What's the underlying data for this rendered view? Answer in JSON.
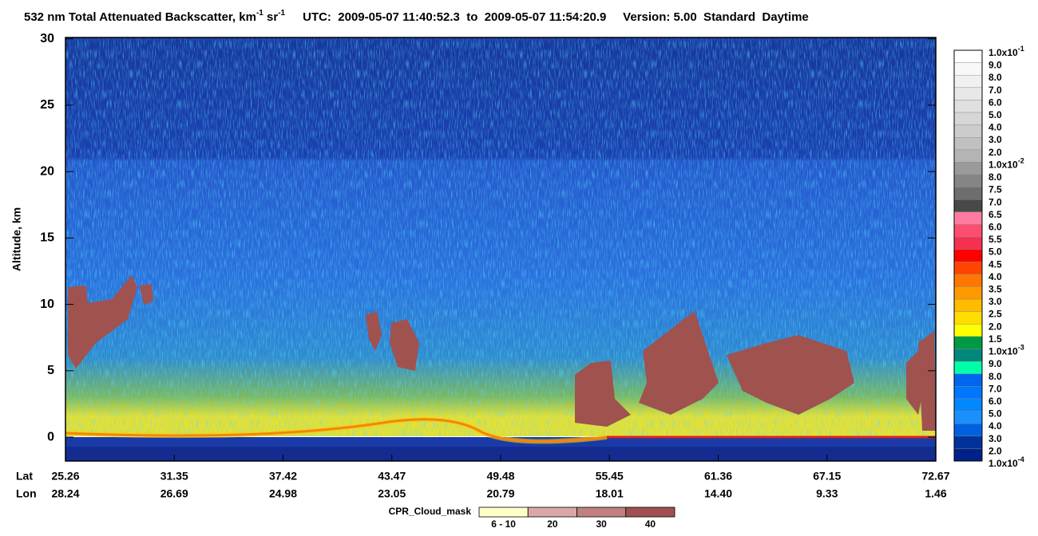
{
  "title": {
    "prefix": "532 nm Total Attenuated Backscatter, km",
    "exp1": "-1",
    "mid": " sr",
    "exp2": "-1",
    "rest": "UTC:  2009-05-07 11:40:52.3  to  2009-05-07 11:54:20.9     Version: 5.00  Standard  Daytime"
  },
  "y_axis": {
    "label": "Altitude, km",
    "ylim": [
      -1.8,
      30.1
    ],
    "yticks": [
      0,
      5,
      10,
      15,
      20,
      25,
      30
    ]
  },
  "x_axis": {
    "lat_label": "Lat",
    "lon_label": "Lon",
    "lat": [
      "25.26",
      "31.35",
      "37.42",
      "43.47",
      "49.48",
      "55.45",
      "61.36",
      "67.15",
      "72.67"
    ],
    "lon": [
      "28.24",
      "26.69",
      "24.98",
      "23.05",
      "20.79",
      "18.01",
      "14.40",
      "9.33",
      "1.46"
    ]
  },
  "colorbar": {
    "labels": [
      {
        "text": "1.0x10",
        "exp": "-1"
      },
      {
        "text": "9.0"
      },
      {
        "text": "8.0"
      },
      {
        "text": "7.0"
      },
      {
        "text": "6.0"
      },
      {
        "text": "5.0"
      },
      {
        "text": "4.0"
      },
      {
        "text": "3.0"
      },
      {
        "text": "2.0"
      },
      {
        "text": "1.0x10",
        "exp": "-2"
      },
      {
        "text": "8.0"
      },
      {
        "text": "7.5"
      },
      {
        "text": "7.0"
      },
      {
        "text": "6.5"
      },
      {
        "text": "6.0"
      },
      {
        "text": "5.5"
      },
      {
        "text": "5.0"
      },
      {
        "text": "4.5"
      },
      {
        "text": "4.0"
      },
      {
        "text": "3.5"
      },
      {
        "text": "3.0"
      },
      {
        "text": "2.5"
      },
      {
        "text": "2.0"
      },
      {
        "text": "1.5"
      },
      {
        "text": "1.0x10",
        "exp": "-3"
      },
      {
        "text": "9.0"
      },
      {
        "text": "8.0"
      },
      {
        "text": "7.0"
      },
      {
        "text": "6.0"
      },
      {
        "text": "5.0"
      },
      {
        "text": "4.0"
      },
      {
        "text": "3.0"
      },
      {
        "text": "2.0"
      },
      {
        "text": "1.0x10",
        "exp": "-4"
      }
    ],
    "colors": [
      "#ffffff",
      "#f8f8f8",
      "#f0f0f0",
      "#e8e8e8",
      "#e0e0e0",
      "#d6d6d6",
      "#cccccc",
      "#c0c0c0",
      "#b4b4b4",
      "#9a9a9a",
      "#858585",
      "#6e6e6e",
      "#484848",
      "#ff7ca0",
      "#ff4d70",
      "#f53050",
      "#ff0000",
      "#ff4400",
      "#ff7700",
      "#ff9900",
      "#ffbb00",
      "#ffdd00",
      "#ffff00",
      "#009944",
      "#00887a",
      "#00ffaa",
      "#0066ee",
      "#0077ff",
      "#0088ff",
      "#1a90ff",
      "#0060e0",
      "#003399",
      "#002288"
    ]
  },
  "cpr_legend": {
    "label": "CPR_Cloud_mask",
    "items": [
      {
        "label": "6 - 10",
        "color": "#ffffc8"
      },
      {
        "label": "20",
        "color": "#d8a8a8"
      },
      {
        "label": "30",
        "color": "#c08080"
      },
      {
        "label": "40",
        "color": "#a05050"
      }
    ]
  }
}
